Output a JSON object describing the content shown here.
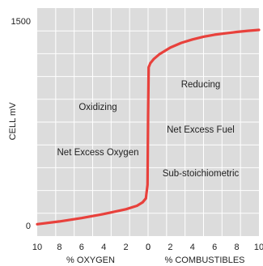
{
  "chart_data": {
    "type": "line",
    "ylabel": "CELL mV",
    "ylim": [
      0,
      1500
    ],
    "ytick_labels": [
      {
        "value": 0,
        "label": "0"
      },
      {
        "value": 1500,
        "label": "1500"
      }
    ],
    "x_left_label": "% OXYGEN",
    "x_right_label": "% COMBUSTIBLES",
    "x_left_ticks": [
      "10",
      "8",
      "6",
      "4",
      "2",
      "0"
    ],
    "x_right_ticks": [
      "0",
      "2",
      "4",
      "6",
      "8",
      "10"
    ],
    "grid": true,
    "region_labels": {
      "oxidizing": "Oxidizing",
      "net_excess_oxygen": "Net Excess Oxygen",
      "reducing": "Reducing",
      "net_excess_fuel": "Net Excess Fuel",
      "sub_stoichiometric": "Sub-stoichiometric"
    },
    "series": [
      {
        "color": "#e8413c",
        "x": [
          -10,
          -8,
          -6,
          -4,
          -2,
          -1,
          -0.5,
          -0.2,
          -0.05,
          0,
          0.05,
          0.2,
          0.5,
          1,
          2,
          3,
          4,
          5,
          6,
          7,
          8,
          9,
          10
        ],
        "y": [
          10,
          30,
          55,
          85,
          120,
          145,
          170,
          200,
          300,
          800,
          1160,
          1190,
          1220,
          1255,
          1305,
          1340,
          1365,
          1385,
          1400,
          1410,
          1420,
          1428,
          1435
        ]
      }
    ]
  },
  "colors": {
    "plot_background": "#dcdcdc",
    "grid": "#ffffff",
    "curve": "#e8413c"
  }
}
